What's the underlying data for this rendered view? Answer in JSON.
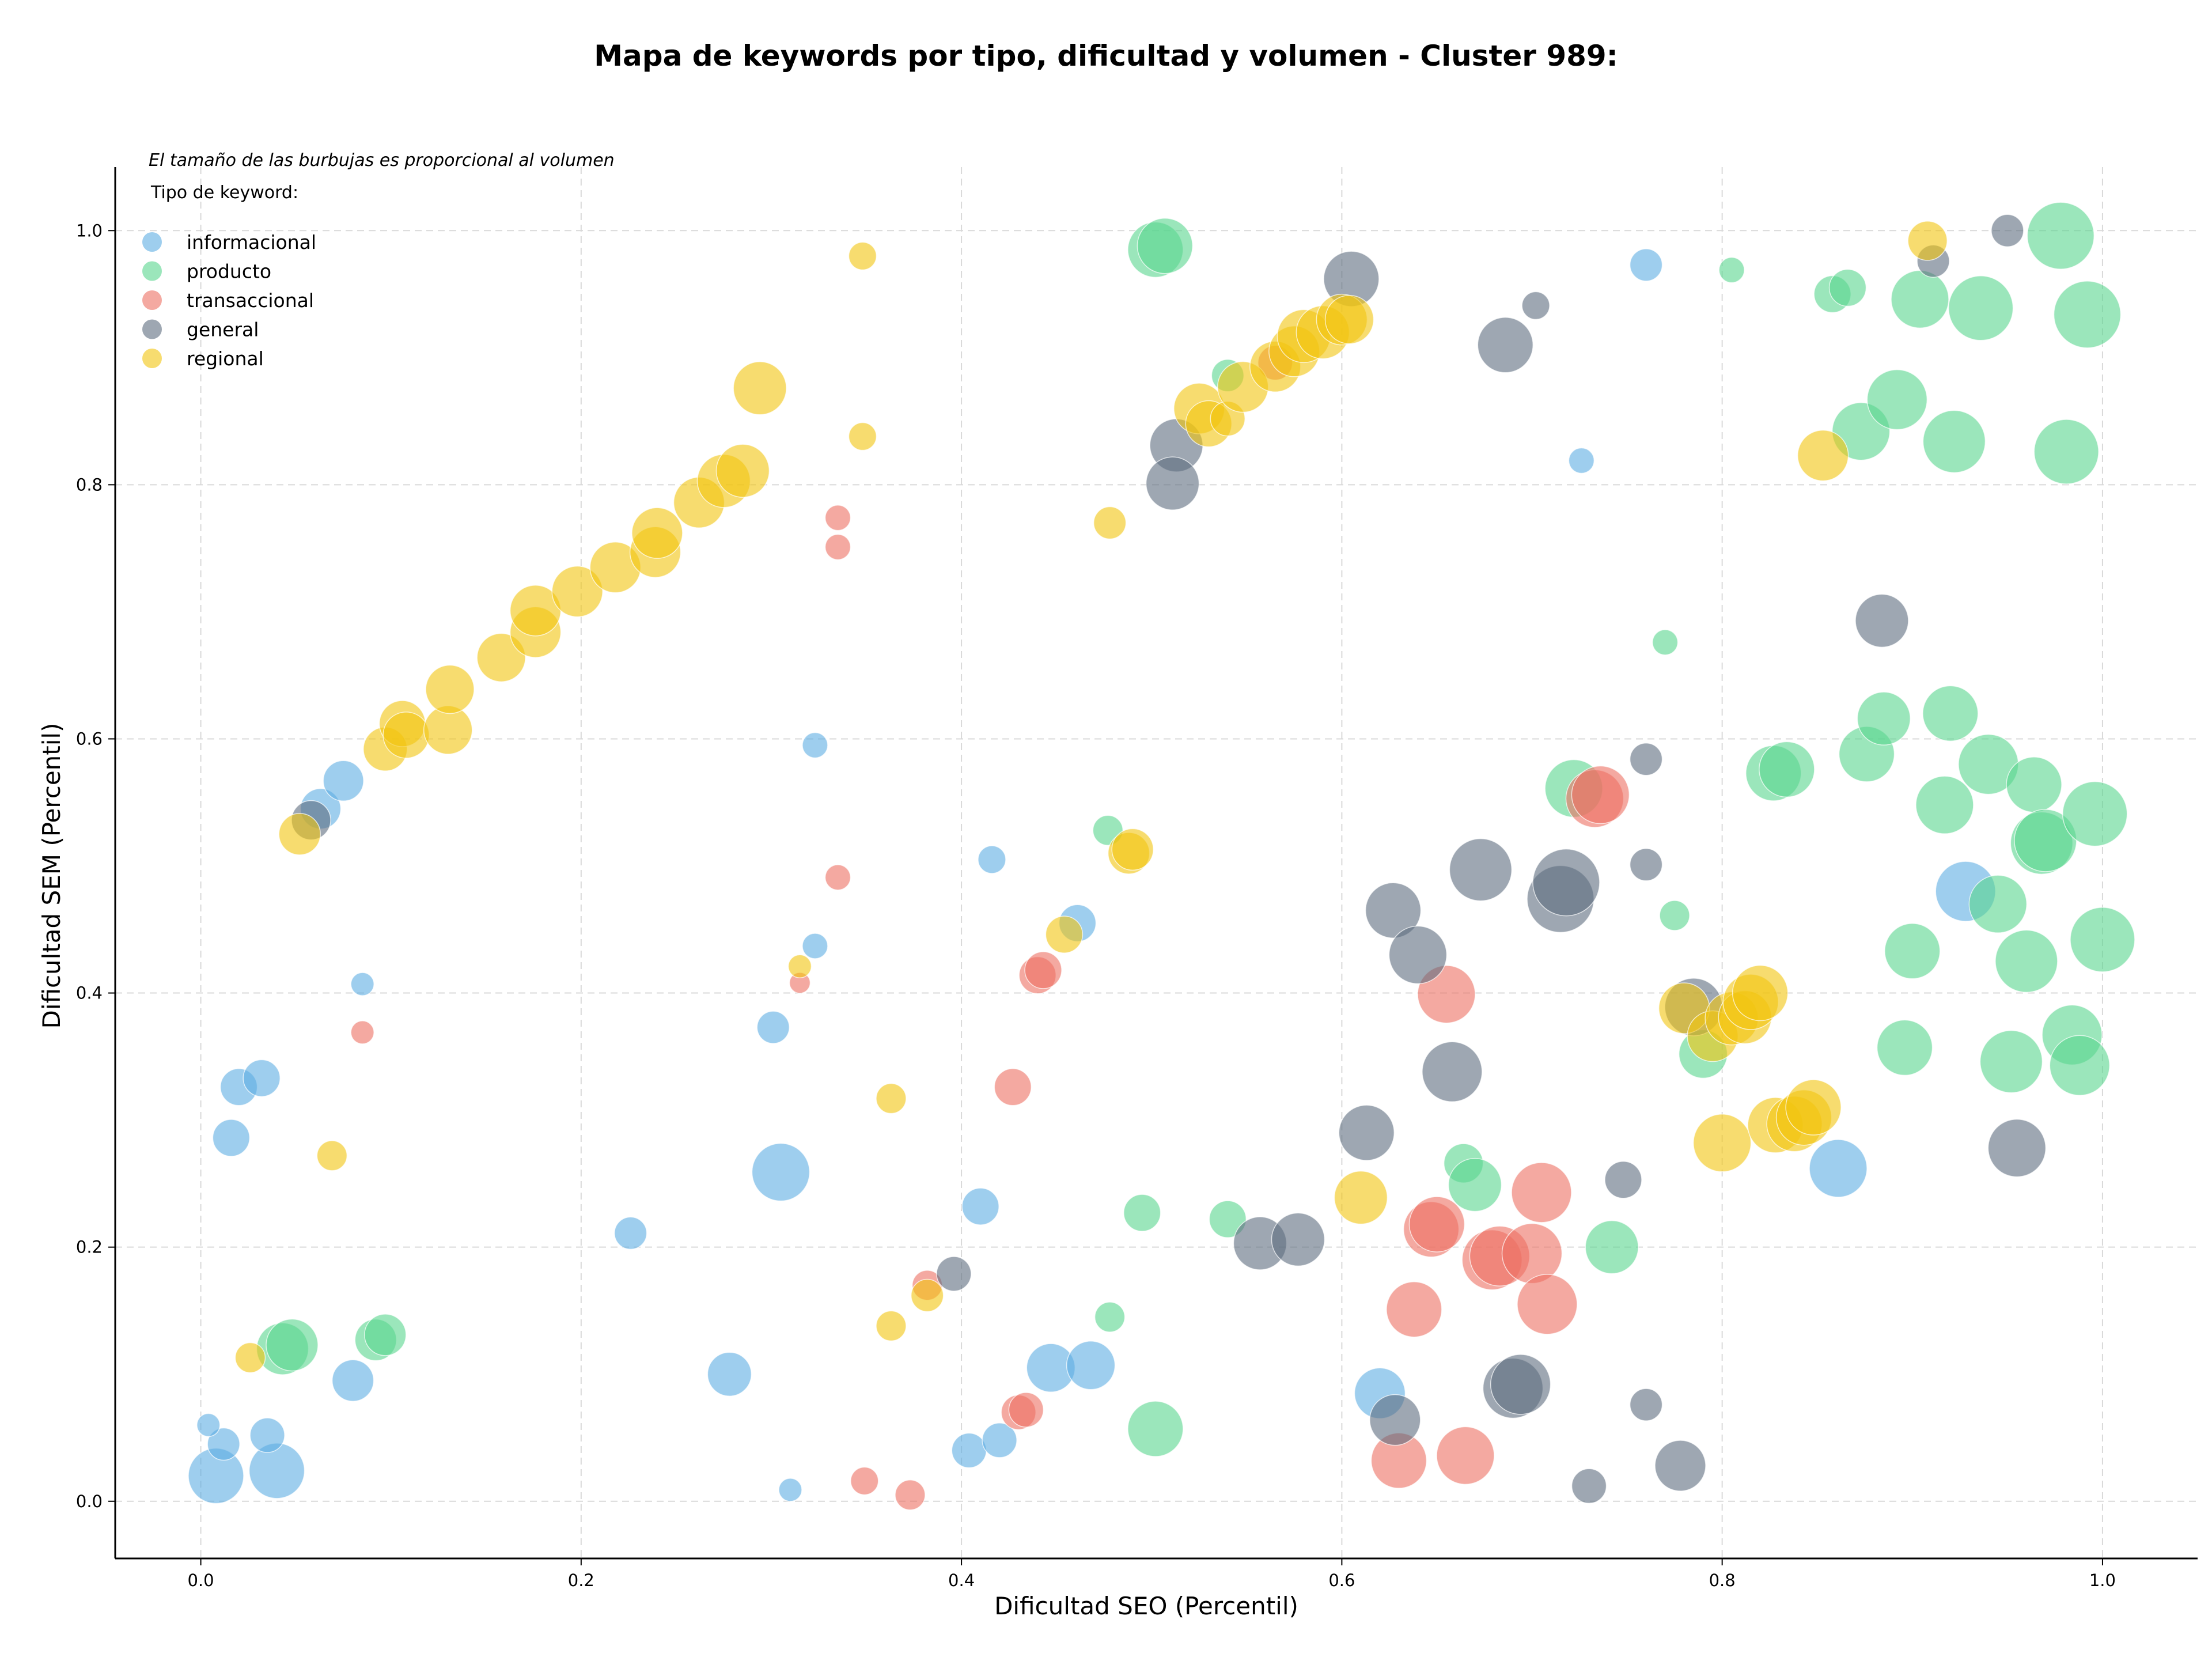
{
  "chart_data": {
    "type": "scatter",
    "title": "Mapa de keywords por tipo, dificultad y volumen - Cluster 989:",
    "xlabel": "Dificultad SEO (Percentil)",
    "ylabel": "Dificultad SEM (Percentil)",
    "annotation": "El tamaño de las burbujas es proporcional al volumen",
    "legend_title": "Tipo de keyword:",
    "legend_position": "top-left",
    "xlim": [
      -0.045,
      1.05
    ],
    "ylim": [
      -0.045,
      1.05
    ],
    "x_ticks": [
      0.0,
      0.2,
      0.4,
      0.6,
      0.8,
      1.0
    ],
    "y_ticks": [
      0.0,
      0.2,
      0.4,
      0.6,
      0.8,
      1.0
    ],
    "x_tick_labels": [
      "0.0",
      "0.2",
      "0.4",
      "0.6",
      "0.8",
      "1.0"
    ],
    "y_tick_labels": [
      "0.0",
      "0.2",
      "0.4",
      "0.6",
      "0.8",
      "1.0"
    ],
    "grid": true,
    "size_unit": "relative volume",
    "series": [
      {
        "name": "informacional",
        "color": "#5DADE2",
        "points": [
          {
            "x": 0.008,
            "y": 0.02,
            "s": 48
          },
          {
            "x": 0.04,
            "y": 0.024,
            "s": 48
          },
          {
            "x": 0.012,
            "y": 0.045,
            "s": 28
          },
          {
            "x": 0.035,
            "y": 0.052,
            "s": 30
          },
          {
            "x": 0.004,
            "y": 0.06,
            "s": 20
          },
          {
            "x": 0.08,
            "y": 0.095,
            "s": 36
          },
          {
            "x": 0.016,
            "y": 0.286,
            "s": 32
          },
          {
            "x": 0.02,
            "y": 0.326,
            "s": 32
          },
          {
            "x": 0.032,
            "y": 0.333,
            "s": 32
          },
          {
            "x": 0.085,
            "y": 0.407,
            "s": 20
          },
          {
            "x": 0.063,
            "y": 0.545,
            "s": 35
          },
          {
            "x": 0.075,
            "y": 0.567,
            "s": 35
          },
          {
            "x": 0.226,
            "y": 0.211,
            "s": 28
          },
          {
            "x": 0.278,
            "y": 0.1,
            "s": 38
          },
          {
            "x": 0.305,
            "y": 0.259,
            "s": 50
          },
          {
            "x": 0.301,
            "y": 0.373,
            "s": 28
          },
          {
            "x": 0.323,
            "y": 0.595,
            "s": 22
          },
          {
            "x": 0.323,
            "y": 0.437,
            "s": 22
          },
          {
            "x": 0.31,
            "y": 0.009,
            "s": 20
          },
          {
            "x": 0.416,
            "y": 0.505,
            "s": 24
          },
          {
            "x": 0.41,
            "y": 0.232,
            "s": 32
          },
          {
            "x": 0.461,
            "y": 0.455,
            "s": 32
          },
          {
            "x": 0.447,
            "y": 0.105,
            "s": 42
          },
          {
            "x": 0.468,
            "y": 0.107,
            "s": 42
          },
          {
            "x": 0.404,
            "y": 0.04,
            "s": 30
          },
          {
            "x": 0.42,
            "y": 0.048,
            "s": 30
          },
          {
            "x": 0.62,
            "y": 0.085,
            "s": 44
          },
          {
            "x": 0.726,
            "y": 0.819,
            "s": 22
          },
          {
            "x": 0.76,
            "y": 0.973,
            "s": 28
          },
          {
            "x": 0.861,
            "y": 0.262,
            "s": 50
          },
          {
            "x": 0.928,
            "y": 0.48,
            "s": 52
          }
        ]
      },
      {
        "name": "producto",
        "color": "#58D68D",
        "points": [
          {
            "x": 0.043,
            "y": 0.12,
            "s": 45
          },
          {
            "x": 0.048,
            "y": 0.123,
            "s": 45
          },
          {
            "x": 0.092,
            "y": 0.127,
            "s": 36
          },
          {
            "x": 0.097,
            "y": 0.131,
            "s": 36
          },
          {
            "x": 0.477,
            "y": 0.528,
            "s": 26
          },
          {
            "x": 0.478,
            "y": 0.145,
            "s": 26
          },
          {
            "x": 0.495,
            "y": 0.227,
            "s": 32
          },
          {
            "x": 0.502,
            "y": 0.057,
            "s": 48
          },
          {
            "x": 0.502,
            "y": 0.985,
            "s": 48
          },
          {
            "x": 0.507,
            "y": 0.988,
            "s": 48
          },
          {
            "x": 0.54,
            "y": 0.222,
            "s": 32
          },
          {
            "x": 0.54,
            "y": 0.886,
            "s": 28
          },
          {
            "x": 0.664,
            "y": 0.266,
            "s": 34
          },
          {
            "x": 0.67,
            "y": 0.249,
            "s": 46
          },
          {
            "x": 0.722,
            "y": 0.561,
            "s": 50
          },
          {
            "x": 0.742,
            "y": 0.2,
            "s": 46
          },
          {
            "x": 0.77,
            "y": 0.676,
            "s": 22
          },
          {
            "x": 0.775,
            "y": 0.461,
            "s": 26
          },
          {
            "x": 0.79,
            "y": 0.352,
            "s": 42
          },
          {
            "x": 0.805,
            "y": 0.969,
            "s": 22
          },
          {
            "x": 0.827,
            "y": 0.573,
            "s": 48
          },
          {
            "x": 0.834,
            "y": 0.576,
            "s": 48
          },
          {
            "x": 0.858,
            "y": 0.95,
            "s": 32
          },
          {
            "x": 0.866,
            "y": 0.955,
            "s": 32
          },
          {
            "x": 0.873,
            "y": 0.842,
            "s": 50
          },
          {
            "x": 0.876,
            "y": 0.588,
            "s": 48
          },
          {
            "x": 0.885,
            "y": 0.616,
            "s": 46
          },
          {
            "x": 0.892,
            "y": 0.867,
            "s": 52
          },
          {
            "x": 0.896,
            "y": 0.357,
            "s": 48
          },
          {
            "x": 0.9,
            "y": 0.433,
            "s": 48
          },
          {
            "x": 0.904,
            "y": 0.946,
            "s": 50
          },
          {
            "x": 0.917,
            "y": 0.548,
            "s": 50
          },
          {
            "x": 0.92,
            "y": 0.62,
            "s": 48
          },
          {
            "x": 0.922,
            "y": 0.834,
            "s": 54
          },
          {
            "x": 0.936,
            "y": 0.939,
            "s": 56
          },
          {
            "x": 0.94,
            "y": 0.58,
            "s": 52
          },
          {
            "x": 0.945,
            "y": 0.47,
            "s": 50
          },
          {
            "x": 0.952,
            "y": 0.346,
            "s": 54
          },
          {
            "x": 0.96,
            "y": 0.425,
            "s": 54
          },
          {
            "x": 0.964,
            "y": 0.564,
            "s": 48
          },
          {
            "x": 0.968,
            "y": 0.518,
            "s": 54
          },
          {
            "x": 0.97,
            "y": 0.52,
            "s": 54
          },
          {
            "x": 0.978,
            "y": 0.996,
            "s": 58
          },
          {
            "x": 0.981,
            "y": 0.826,
            "s": 56
          },
          {
            "x": 0.984,
            "y": 0.367,
            "s": 52
          },
          {
            "x": 0.988,
            "y": 0.343,
            "s": 52
          },
          {
            "x": 0.992,
            "y": 0.934,
            "s": 58
          },
          {
            "x": 0.996,
            "y": 0.541,
            "s": 56
          },
          {
            "x": 1.0,
            "y": 0.442,
            "s": 56
          }
        ]
      },
      {
        "name": "transaccional",
        "color": "#EC7063",
        "points": [
          {
            "x": 0.085,
            "y": 0.369,
            "s": 20
          },
          {
            "x": 0.315,
            "y": 0.408,
            "s": 18
          },
          {
            "x": 0.335,
            "y": 0.774,
            "s": 22
          },
          {
            "x": 0.335,
            "y": 0.751,
            "s": 22
          },
          {
            "x": 0.335,
            "y": 0.491,
            "s": 22
          },
          {
            "x": 0.349,
            "y": 0.016,
            "s": 24
          },
          {
            "x": 0.373,
            "y": 0.005,
            "s": 26
          },
          {
            "x": 0.382,
            "y": 0.17,
            "s": 26
          },
          {
            "x": 0.427,
            "y": 0.326,
            "s": 32
          },
          {
            "x": 0.43,
            "y": 0.07,
            "s": 30
          },
          {
            "x": 0.434,
            "y": 0.072,
            "s": 30
          },
          {
            "x": 0.44,
            "y": 0.414,
            "s": 32
          },
          {
            "x": 0.443,
            "y": 0.418,
            "s": 32
          },
          {
            "x": 0.565,
            "y": 0.896,
            "s": 30
          },
          {
            "x": 0.63,
            "y": 0.032,
            "s": 48
          },
          {
            "x": 0.638,
            "y": 0.151,
            "s": 48
          },
          {
            "x": 0.647,
            "y": 0.214,
            "s": 48
          },
          {
            "x": 0.65,
            "y": 0.218,
            "s": 48
          },
          {
            "x": 0.655,
            "y": 0.399,
            "s": 50
          },
          {
            "x": 0.665,
            "y": 0.036,
            "s": 50
          },
          {
            "x": 0.679,
            "y": 0.19,
            "s": 52
          },
          {
            "x": 0.683,
            "y": 0.193,
            "s": 52
          },
          {
            "x": 0.7,
            "y": 0.195,
            "s": 52
          },
          {
            "x": 0.705,
            "y": 0.243,
            "s": 52
          },
          {
            "x": 0.708,
            "y": 0.155,
            "s": 52
          },
          {
            "x": 0.733,
            "y": 0.553,
            "s": 50
          },
          {
            "x": 0.736,
            "y": 0.556,
            "s": 50
          }
        ]
      },
      {
        "name": "general",
        "color": "#5D6D7E",
        "points": [
          {
            "x": 0.058,
            "y": 0.536,
            "s": 34
          },
          {
            "x": 0.396,
            "y": 0.179,
            "s": 30
          },
          {
            "x": 0.513,
            "y": 0.831,
            "s": 46
          },
          {
            "x": 0.511,
            "y": 0.801,
            "s": 46
          },
          {
            "x": 0.557,
            "y": 0.203,
            "s": 46
          },
          {
            "x": 0.577,
            "y": 0.206,
            "s": 46
          },
          {
            "x": 0.605,
            "y": 0.962,
            "s": 48
          },
          {
            "x": 0.613,
            "y": 0.29,
            "s": 48
          },
          {
            "x": 0.627,
            "y": 0.465,
            "s": 48
          },
          {
            "x": 0.628,
            "y": 0.064,
            "s": 44
          },
          {
            "x": 0.64,
            "y": 0.43,
            "s": 50
          },
          {
            "x": 0.658,
            "y": 0.338,
            "s": 52
          },
          {
            "x": 0.673,
            "y": 0.497,
            "s": 54
          },
          {
            "x": 0.686,
            "y": 0.91,
            "s": 48
          },
          {
            "x": 0.69,
            "y": 0.089,
            "s": 52
          },
          {
            "x": 0.694,
            "y": 0.092,
            "s": 52
          },
          {
            "x": 0.702,
            "y": 0.941,
            "s": 24
          },
          {
            "x": 0.715,
            "y": 0.474,
            "s": 58
          },
          {
            "x": 0.718,
            "y": 0.487,
            "s": 58
          },
          {
            "x": 0.73,
            "y": 0.012,
            "s": 30
          },
          {
            "x": 0.748,
            "y": 0.253,
            "s": 32
          },
          {
            "x": 0.76,
            "y": 0.584,
            "s": 28
          },
          {
            "x": 0.76,
            "y": 0.501,
            "s": 28
          },
          {
            "x": 0.76,
            "y": 0.076,
            "s": 28
          },
          {
            "x": 0.778,
            "y": 0.028,
            "s": 44
          },
          {
            "x": 0.785,
            "y": 0.389,
            "s": 50
          },
          {
            "x": 0.884,
            "y": 0.693,
            "s": 46
          },
          {
            "x": 0.911,
            "y": 0.976,
            "s": 28
          },
          {
            "x": 0.95,
            "y": 1.0,
            "s": 28
          },
          {
            "x": 0.955,
            "y": 0.278,
            "s": 50
          }
        ]
      },
      {
        "name": "regional",
        "color": "#F1C40F",
        "points": [
          {
            "x": 0.026,
            "y": 0.113,
            "s": 26
          },
          {
            "x": 0.052,
            "y": 0.525,
            "s": 36
          },
          {
            "x": 0.069,
            "y": 0.272,
            "s": 26
          },
          {
            "x": 0.097,
            "y": 0.592,
            "s": 38
          },
          {
            "x": 0.106,
            "y": 0.612,
            "s": 40
          },
          {
            "x": 0.108,
            "y": 0.603,
            "s": 40
          },
          {
            "x": 0.13,
            "y": 0.607,
            "s": 42
          },
          {
            "x": 0.131,
            "y": 0.639,
            "s": 42
          },
          {
            "x": 0.158,
            "y": 0.664,
            "s": 42
          },
          {
            "x": 0.176,
            "y": 0.684,
            "s": 44
          },
          {
            "x": 0.176,
            "y": 0.701,
            "s": 44
          },
          {
            "x": 0.198,
            "y": 0.716,
            "s": 44
          },
          {
            "x": 0.218,
            "y": 0.735,
            "s": 44
          },
          {
            "x": 0.239,
            "y": 0.747,
            "s": 44
          },
          {
            "x": 0.24,
            "y": 0.762,
            "s": 44
          },
          {
            "x": 0.262,
            "y": 0.786,
            "s": 44
          },
          {
            "x": 0.275,
            "y": 0.803,
            "s": 46
          },
          {
            "x": 0.285,
            "y": 0.811,
            "s": 46
          },
          {
            "x": 0.294,
            "y": 0.876,
            "s": 46
          },
          {
            "x": 0.315,
            "y": 0.421,
            "s": 20
          },
          {
            "x": 0.348,
            "y": 0.98,
            "s": 24
          },
          {
            "x": 0.348,
            "y": 0.838,
            "s": 24
          },
          {
            "x": 0.363,
            "y": 0.317,
            "s": 26
          },
          {
            "x": 0.363,
            "y": 0.138,
            "s": 26
          },
          {
            "x": 0.382,
            "y": 0.162,
            "s": 28
          },
          {
            "x": 0.454,
            "y": 0.446,
            "s": 32
          },
          {
            "x": 0.478,
            "y": 0.77,
            "s": 28
          },
          {
            "x": 0.488,
            "y": 0.51,
            "s": 36
          },
          {
            "x": 0.49,
            "y": 0.513,
            "s": 36
          },
          {
            "x": 0.525,
            "y": 0.86,
            "s": 44
          },
          {
            "x": 0.53,
            "y": 0.848,
            "s": 40
          },
          {
            "x": 0.54,
            "y": 0.852,
            "s": 30
          },
          {
            "x": 0.548,
            "y": 0.877,
            "s": 44
          },
          {
            "x": 0.565,
            "y": 0.893,
            "s": 44
          },
          {
            "x": 0.575,
            "y": 0.905,
            "s": 44
          },
          {
            "x": 0.58,
            "y": 0.917,
            "s": 46
          },
          {
            "x": 0.59,
            "y": 0.92,
            "s": 46
          },
          {
            "x": 0.6,
            "y": 0.93,
            "s": 44
          },
          {
            "x": 0.604,
            "y": 0.93,
            "s": 42
          },
          {
            "x": 0.61,
            "y": 0.239,
            "s": 46
          },
          {
            "x": 0.78,
            "y": 0.388,
            "s": 44
          },
          {
            "x": 0.8,
            "y": 0.282,
            "s": 50
          },
          {
            "x": 0.795,
            "y": 0.366,
            "s": 44
          },
          {
            "x": 0.805,
            "y": 0.38,
            "s": 46
          },
          {
            "x": 0.812,
            "y": 0.381,
            "s": 46
          },
          {
            "x": 0.815,
            "y": 0.393,
            "s": 48
          },
          {
            "x": 0.82,
            "y": 0.4,
            "s": 48
          },
          {
            "x": 0.828,
            "y": 0.296,
            "s": 48
          },
          {
            "x": 0.838,
            "y": 0.297,
            "s": 48
          },
          {
            "x": 0.843,
            "y": 0.302,
            "s": 48
          },
          {
            "x": 0.848,
            "y": 0.31,
            "s": 48
          },
          {
            "x": 0.853,
            "y": 0.823,
            "s": 44
          },
          {
            "x": 0.908,
            "y": 0.992,
            "s": 34
          }
        ]
      }
    ]
  }
}
